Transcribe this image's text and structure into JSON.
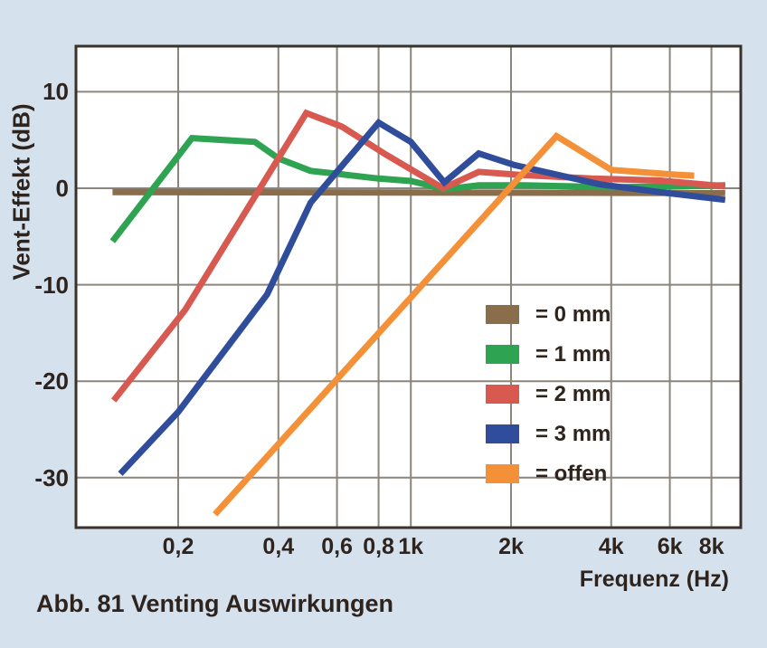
{
  "page": {
    "caption": "Abb. 81 Venting Auswirkungen",
    "background_color": "#d5e1ed"
  },
  "chart_data": {
    "type": "line",
    "title": "",
    "xlabel": "Frequenz (Hz)",
    "ylabel": "Vent-Effekt (dB)",
    "x_scale": "log",
    "x_values_unit": "kHz",
    "xlim_khz": [
      0.098,
      9.8
    ],
    "ylim_db": [
      -35.2,
      14.7
    ],
    "grid": true,
    "legend_position": "inside bottom-right",
    "y_ticks": [
      {
        "db": 10,
        "label": "10"
      },
      {
        "db": 0,
        "label": "0"
      },
      {
        "db": -10,
        "label": "-10"
      },
      {
        "db": -20,
        "label": "-20"
      },
      {
        "db": -30,
        "label": "-30"
      }
    ],
    "x_ticks": [
      {
        "khz": 0.2,
        "label": "0,2"
      },
      {
        "khz": 0.4,
        "label": "0,4"
      },
      {
        "khz": 0.6,
        "label": "0,6"
      },
      {
        "khz": 0.8,
        "label": "0,8"
      },
      {
        "khz": 1,
        "label": "1k"
      },
      {
        "khz": 2,
        "label": "2k"
      },
      {
        "khz": 4,
        "label": "4k"
      },
      {
        "khz": 6,
        "label": "6k"
      },
      {
        "khz": 8,
        "label": "8k"
      }
    ],
    "series": [
      {
        "name": "0 mm",
        "legend_label": "= 0 mm",
        "color": "#8a6d4b",
        "points_khz_db": [
          [
            0.127,
            -0.4
          ],
          [
            8.8,
            -0.5
          ]
        ]
      },
      {
        "name": "1 mm",
        "legend_label": "= 1 mm",
        "color": "#2ea351",
        "points_khz_db": [
          [
            0.127,
            -5.5
          ],
          [
            0.22,
            5.2
          ],
          [
            0.34,
            4.8
          ],
          [
            0.4,
            3.1
          ],
          [
            0.5,
            1.8
          ],
          [
            0.6,
            1.5
          ],
          [
            0.8,
            1.0
          ],
          [
            1.0,
            0.75
          ],
          [
            1.27,
            -0.1
          ],
          [
            1.6,
            0.3
          ],
          [
            2.2,
            0.3
          ],
          [
            4.0,
            0.1
          ],
          [
            6.0,
            0.2
          ],
          [
            8.8,
            0.3
          ]
        ]
      },
      {
        "name": "2 mm",
        "legend_label": "= 2 mm",
        "color": "#d75950",
        "points_khz_db": [
          [
            0.128,
            -22.0
          ],
          [
            0.21,
            -12.6
          ],
          [
            0.485,
            7.8
          ],
          [
            0.62,
            6.4
          ],
          [
            0.84,
            3.5
          ],
          [
            1.25,
            0.0
          ],
          [
            1.6,
            1.7
          ],
          [
            2.1,
            1.4
          ],
          [
            3.5,
            1.0
          ],
          [
            5.6,
            0.8
          ],
          [
            8.8,
            0.2
          ]
        ]
      },
      {
        "name": "3 mm",
        "legend_label": "= 3 mm",
        "color": "#304d9b",
        "points_khz_db": [
          [
            0.134,
            -29.6
          ],
          [
            0.2,
            -23.2
          ],
          [
            0.37,
            -11.0
          ],
          [
            0.5,
            -1.5
          ],
          [
            0.8,
            6.8
          ],
          [
            1.0,
            4.8
          ],
          [
            1.26,
            0.6
          ],
          [
            1.6,
            3.6
          ],
          [
            2.05,
            2.4
          ],
          [
            3.7,
            0.4
          ],
          [
            5.6,
            -0.4
          ],
          [
            8.8,
            -1.2
          ]
        ]
      },
      {
        "name": "offen",
        "legend_label": "= offen",
        "color": "#f49038",
        "points_khz_db": [
          [
            0.258,
            -33.8
          ],
          [
            2.74,
            5.4
          ],
          [
            4.0,
            1.9
          ],
          [
            6.3,
            1.4
          ],
          [
            7.1,
            1.3
          ]
        ]
      }
    ],
    "style": {
      "plot_bg": "#ffffff",
      "axis_color": "#3a322a",
      "grid_color": "#8b857c",
      "text_color": "#2e241d",
      "line_width": 7
    }
  }
}
